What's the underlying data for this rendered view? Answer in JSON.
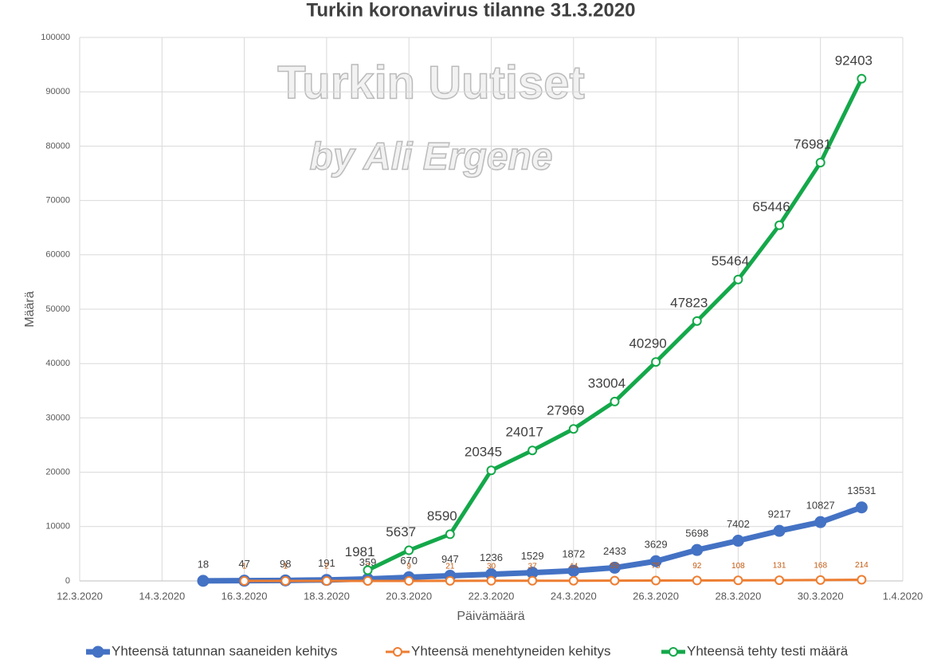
{
  "chart_data": {
    "type": "line",
    "title": "Turkin koronavirus tilanne 31.3.2020",
    "watermark": [
      "Turkin Uutiset",
      "by Ali Ergene"
    ],
    "x_label": "Päivämäärä",
    "y_label": "Määrä",
    "x": [
      "15.3.2020",
      "16.3.2020",
      "17.3.2020",
      "18.3.2020",
      "19.3.2020",
      "20.3.2020",
      "21.3.2020",
      "22.3.2020",
      "23.3.2020",
      "24.3.2020",
      "25.3.2020",
      "26.3.2020",
      "27.3.2020",
      "28.3.2020",
      "29.3.2020",
      "30.3.2020",
      "31.3.2020"
    ],
    "series": [
      {
        "name": "Yhteensä tatunnan saaneiden kehitys",
        "color": "#4472c4",
        "values": [
          18,
          47,
          98,
          191,
          359,
          670,
          947,
          1236,
          1529,
          1872,
          2433,
          3629,
          5698,
          7402,
          9217,
          10827,
          13531
        ]
      },
      {
        "name": "Yhteensä menehtyneiden kehitys",
        "color": "#ed7d31",
        "values": [
          null,
          1,
          1,
          2,
          3,
          9,
          21,
          30,
          37,
          44,
          59,
          75,
          92,
          108,
          131,
          168,
          214
        ]
      },
      {
        "name": "Yhteensä tehty testi määrä",
        "color": "#14a84a",
        "values": [
          null,
          null,
          null,
          null,
          1981,
          5637,
          8590,
          20345,
          24017,
          27969,
          33004,
          40290,
          47823,
          55464,
          65446,
          76981,
          92403
        ]
      }
    ],
    "xlim": [
      "12.3.2020",
      "1.4.2020"
    ],
    "xticks": [
      "12.3.2020",
      "14.3.2020",
      "16.3.2020",
      "18.3.2020",
      "20.3.2020",
      "22.3.2020",
      "24.3.2020",
      "26.3.2020",
      "28.3.2020",
      "30.3.2020",
      "1.4.2020"
    ],
    "ylim": [
      0,
      100000
    ],
    "yticks": [
      0,
      10000,
      20000,
      30000,
      40000,
      50000,
      60000,
      70000,
      80000,
      90000,
      100000
    ],
    "grid": true,
    "legend": "bottom"
  }
}
